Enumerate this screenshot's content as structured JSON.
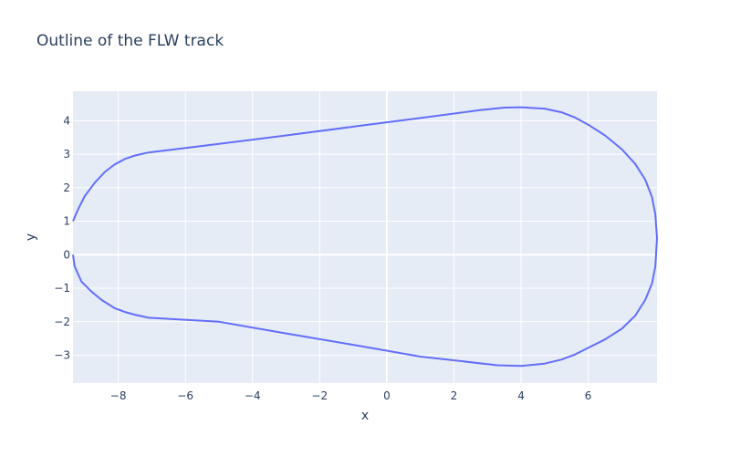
{
  "chart_data": {
    "type": "line",
    "title": "Outline of the FLW track",
    "xlabel": "x",
    "ylabel": "y",
    "xlim": [
      -9.35,
      8.05
    ],
    "ylim": [
      -3.83,
      4.88
    ],
    "xticks": [
      -8,
      -6,
      -4,
      -2,
      0,
      2,
      4,
      6
    ],
    "yticks": [
      -3,
      -2,
      -1,
      0,
      1,
      2,
      3,
      4
    ],
    "grid": true,
    "line_color": "#636efa",
    "plot_bg": "#e5ecf6",
    "series": [
      {
        "x": [
          -9.35,
          -9.2,
          -9.0,
          -8.7,
          -8.4,
          -8.1,
          -7.8,
          -7.5,
          -7.1,
          -5.0,
          -3.0,
          -1.0,
          1.0,
          2.8,
          3.5,
          4.0,
          4.7,
          5.2,
          5.6,
          6.0,
          6.5,
          7.0,
          7.4,
          7.7,
          7.9,
          8.0,
          8.05,
          8.0,
          7.9,
          7.7,
          7.4,
          7.0,
          6.5,
          6.0,
          5.6,
          5.2,
          4.7,
          4.0,
          3.3,
          1.0,
          -1.0,
          -3.0,
          -5.0,
          -7.1,
          -7.5,
          -7.8,
          -8.1,
          -8.5,
          -8.8,
          -9.1,
          -9.3,
          -9.35
        ],
        "y": [
          1.0,
          1.35,
          1.75,
          2.15,
          2.47,
          2.7,
          2.86,
          2.96,
          3.05,
          3.31,
          3.56,
          3.82,
          4.08,
          4.32,
          4.39,
          4.4,
          4.36,
          4.25,
          4.1,
          3.88,
          3.56,
          3.15,
          2.71,
          2.24,
          1.72,
          1.2,
          0.5,
          -0.35,
          -0.86,
          -1.35,
          -1.82,
          -2.21,
          -2.53,
          -2.78,
          -2.98,
          -3.13,
          -3.25,
          -3.32,
          -3.3,
          -3.04,
          -2.69,
          -2.35,
          -2.0,
          -1.88,
          -1.79,
          -1.71,
          -1.6,
          -1.35,
          -1.1,
          -0.8,
          -0.35,
          0.0
        ]
      }
    ]
  }
}
